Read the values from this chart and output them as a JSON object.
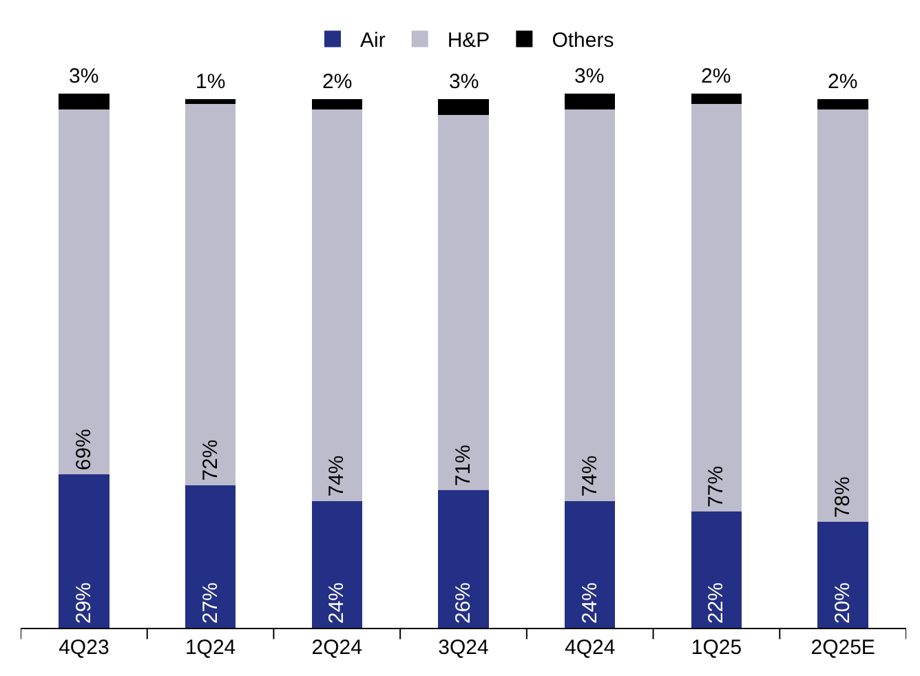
{
  "chart_data": {
    "type": "bar",
    "stacked": true,
    "categories": [
      "4Q23",
      "1Q24",
      "2Q24",
      "3Q24",
      "4Q24",
      "1Q25",
      "2Q25E"
    ],
    "series": [
      {
        "name": "Air",
        "color": "#233085",
        "values": [
          29,
          27,
          24,
          26,
          24,
          22,
          20
        ],
        "value_labels": [
          "29%",
          "27%",
          "24%",
          "26%",
          "24%",
          "22%",
          "20%"
        ]
      },
      {
        "name": "H&P",
        "color": "#bcbccc",
        "values": [
          69,
          72,
          74,
          71,
          74,
          77,
          78
        ],
        "value_labels": [
          "69%",
          "72%",
          "74%",
          "71%",
          "74%",
          "77%",
          "78%"
        ]
      },
      {
        "name": "Others",
        "color": "#000000",
        "values": [
          3,
          1,
          2,
          3,
          3,
          2,
          2
        ],
        "value_labels": [
          "3%",
          "1%",
          "2%",
          "3%",
          "3%",
          "2%",
          "2%"
        ]
      }
    ],
    "legend": "top"
  }
}
